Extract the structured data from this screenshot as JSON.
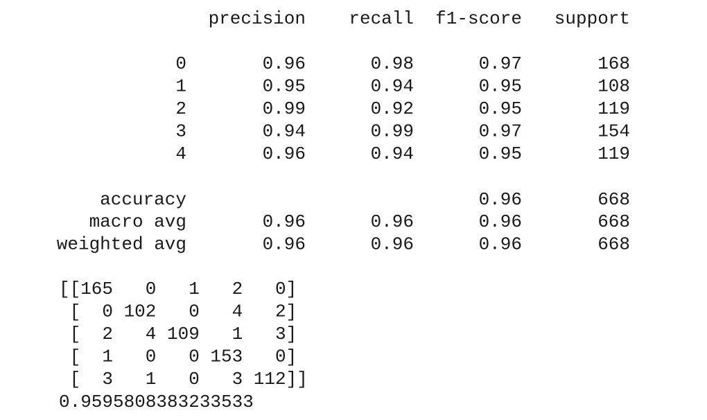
{
  "report": {
    "header": [
      "precision",
      "recall",
      "f1-score",
      "support"
    ],
    "rows": [
      {
        "label": 0,
        "precision": 0.96,
        "recall": 0.98,
        "f1-score": 0.97,
        "support": 168
      },
      {
        "label": 1,
        "precision": 0.95,
        "recall": 0.94,
        "f1-score": 0.95,
        "support": 108
      },
      {
        "label": 2,
        "precision": 0.99,
        "recall": 0.92,
        "f1-score": 0.95,
        "support": 119
      },
      {
        "label": 3,
        "precision": 0.94,
        "recall": 0.99,
        "f1-score": 0.97,
        "support": 154
      },
      {
        "label": 4,
        "precision": 0.96,
        "recall": 0.94,
        "f1-score": 0.95,
        "support": 119
      }
    ],
    "summary": [
      {
        "label": "accuracy",
        "f1-score": 0.96,
        "support": 668
      },
      {
        "label": "macro avg",
        "precision": 0.96,
        "recall": 0.96,
        "f1-score": 0.96,
        "support": 668
      },
      {
        "label": "weighted avg",
        "precision": 0.96,
        "recall": 0.96,
        "f1-score": 0.96,
        "support": 668
      }
    ]
  },
  "confusion_matrix": [
    [
      165,
      0,
      1,
      2,
      0
    ],
    [
      0,
      102,
      0,
      4,
      2
    ],
    [
      2,
      4,
      109,
      1,
      3
    ],
    [
      1,
      0,
      0,
      153,
      0
    ],
    [
      3,
      1,
      0,
      3,
      112
    ]
  ],
  "accuracy_score": 0.9595808383233533
}
